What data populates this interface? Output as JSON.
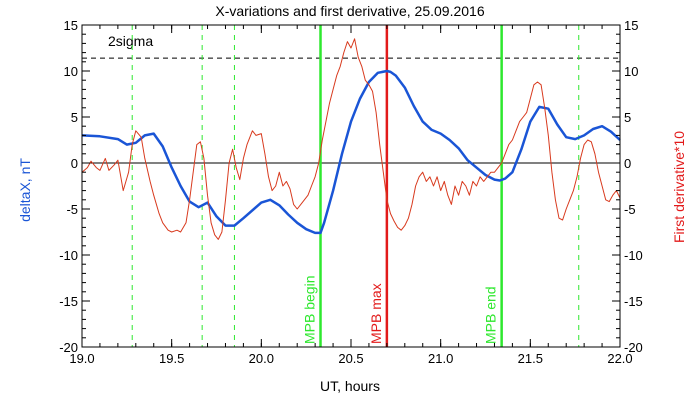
{
  "chart_data": {
    "type": "line",
    "title": "X-variations and first derivative, 25.09.2016",
    "xlabel": "UT, hours",
    "ylabel_left": "deltaX, nT",
    "ylabel_right": "First derivative*10",
    "xlim": [
      19.0,
      22.0
    ],
    "ylim": [
      -20,
      15
    ],
    "xticks": [
      "19.0",
      "19.5",
      "20.0",
      "20.5",
      "21.0",
      "21.5",
      "22.0"
    ],
    "yticks": [
      "-20",
      "-15",
      "-10",
      "-5",
      "0",
      "5",
      "10",
      "15"
    ],
    "sigma_label": "2sigma",
    "sigma_value": 11.4,
    "colors": {
      "deltaX": "#1a55d6",
      "derivative": "#d83a1e",
      "green": "#2ee82e",
      "red_marker": "#e21a1a",
      "axis": "#000000",
      "left_label": "#1a55d6",
      "right_label": "#e21a1a"
    },
    "markers": [
      {
        "label": "MPB begin",
        "x": 20.33,
        "color": "#2ee82e"
      },
      {
        "label": "MPB max",
        "x": 20.7,
        "color": "#e21a1a"
      },
      {
        "label": "MPB end",
        "x": 21.34,
        "color": "#2ee82e"
      }
    ],
    "dashed_lines_x": [
      19.28,
      19.67,
      19.85,
      21.77
    ],
    "series": [
      {
        "key": "deltaX",
        "x": [
          19.0,
          19.1,
          19.2,
          19.25,
          19.3,
          19.35,
          19.4,
          19.45,
          19.5,
          19.55,
          19.6,
          19.65,
          19.7,
          19.75,
          19.8,
          19.85,
          19.9,
          20.0,
          20.05,
          20.1,
          20.15,
          20.2,
          20.25,
          20.3,
          20.33,
          20.35,
          20.4,
          20.45,
          20.5,
          20.55,
          20.6,
          20.65,
          20.7,
          20.72,
          20.75,
          20.8,
          20.85,
          20.9,
          20.95,
          21.0,
          21.05,
          21.1,
          21.15,
          21.2,
          21.25,
          21.3,
          21.33,
          21.36,
          21.4,
          21.45,
          21.5,
          21.55,
          21.6,
          21.65,
          21.7,
          21.75,
          21.8,
          21.85,
          21.9,
          21.95,
          22.0
        ],
        "values": [
          3.0,
          2.9,
          2.6,
          2.0,
          2.2,
          3.0,
          3.2,
          1.8,
          -0.5,
          -2.5,
          -4.2,
          -4.8,
          -4.3,
          -5.8,
          -6.8,
          -6.8,
          -6.0,
          -4.3,
          -4.0,
          -4.6,
          -5.6,
          -6.5,
          -7.2,
          -7.6,
          -7.6,
          -6.5,
          -3.0,
          1.0,
          4.5,
          7.0,
          8.8,
          9.8,
          10.0,
          9.9,
          9.5,
          8.2,
          6.2,
          4.5,
          3.6,
          3.2,
          2.5,
          1.6,
          0.3,
          -0.5,
          -1.3,
          -1.8,
          -1.9,
          -1.7,
          -1.0,
          1.5,
          4.5,
          6.1,
          5.9,
          4.2,
          2.8,
          2.6,
          3.0,
          3.7,
          4.0,
          3.4,
          2.5
        ]
      },
      {
        "key": "derivative",
        "x": [
          19.0,
          19.03,
          19.05,
          19.08,
          19.1,
          19.13,
          19.15,
          19.18,
          19.2,
          19.23,
          19.26,
          19.28,
          19.3,
          19.33,
          19.35,
          19.38,
          19.4,
          19.43,
          19.45,
          19.48,
          19.5,
          19.53,
          19.55,
          19.58,
          19.6,
          19.62,
          19.64,
          19.66,
          19.68,
          19.7,
          19.72,
          19.74,
          19.76,
          19.78,
          19.8,
          19.82,
          19.84,
          19.86,
          19.88,
          19.9,
          19.92,
          19.95,
          19.97,
          20.0,
          20.02,
          20.04,
          20.06,
          20.08,
          20.1,
          20.12,
          20.14,
          20.16,
          20.18,
          20.2,
          20.22,
          20.24,
          20.26,
          20.28,
          20.3,
          20.32,
          20.34,
          20.36,
          20.38,
          20.4,
          20.42,
          20.44,
          20.46,
          20.48,
          20.5,
          20.52,
          20.54,
          20.56,
          20.58,
          20.6,
          20.62,
          20.64,
          20.66,
          20.68,
          20.7,
          20.72,
          20.74,
          20.76,
          20.78,
          20.8,
          20.82,
          20.84,
          20.86,
          20.88,
          20.9,
          20.92,
          20.94,
          20.96,
          20.98,
          21.0,
          21.02,
          21.04,
          21.06,
          21.08,
          21.1,
          21.12,
          21.14,
          21.16,
          21.18,
          21.2,
          21.22,
          21.24,
          21.26,
          21.28,
          21.3,
          21.32,
          21.34,
          21.36,
          21.38,
          21.4,
          21.42,
          21.44,
          21.46,
          21.48,
          21.5,
          21.52,
          21.54,
          21.56,
          21.58,
          21.6,
          21.62,
          21.64,
          21.66,
          21.68,
          21.7,
          21.72,
          21.74,
          21.76,
          21.78,
          21.8,
          21.82,
          21.84,
          21.86,
          21.88,
          21.9,
          21.92,
          21.94,
          21.96,
          21.98,
          22.0
        ],
        "values": [
          -1.0,
          -0.5,
          0.2,
          -0.5,
          -0.8,
          0.5,
          -0.8,
          -0.2,
          0.3,
          -3.0,
          -1.0,
          2.0,
          3.5,
          2.8,
          0.5,
          -2.0,
          -3.5,
          -5.5,
          -6.5,
          -7.3,
          -7.5,
          -7.3,
          -7.5,
          -6.5,
          -4.0,
          -1.0,
          2.0,
          2.3,
          0.5,
          -3.5,
          -6.5,
          -7.8,
          -8.3,
          -7.5,
          -4.0,
          0.0,
          1.5,
          -0.5,
          -1.8,
          0.5,
          2.0,
          3.5,
          3.0,
          3.2,
          1.0,
          -1.5,
          -3.0,
          -2.5,
          -1.0,
          -2.5,
          -2.0,
          -2.8,
          -4.5,
          -5.0,
          -4.5,
          -4.0,
          -3.5,
          -2.5,
          -1.5,
          0.0,
          2.5,
          4.5,
          6.5,
          8.0,
          9.5,
          10.5,
          12.0,
          13.2,
          12.5,
          13.5,
          11.5,
          10.5,
          9.0,
          8.5,
          7.8,
          5.5,
          2.0,
          -1.0,
          -4.0,
          -5.5,
          -6.3,
          -7.0,
          -7.3,
          -6.8,
          -6.0,
          -4.5,
          -2.5,
          -1.5,
          -1.0,
          -2.0,
          -1.5,
          -2.5,
          -1.5,
          -3.0,
          -2.0,
          -3.5,
          -4.5,
          -2.5,
          -3.5,
          -2.0,
          -2.5,
          -3.5,
          -2.0,
          -2.5,
          -1.5,
          -2.0,
          -1.5,
          -1.0,
          -1.0,
          -0.5,
          0.0,
          1.0,
          2.0,
          2.5,
          3.5,
          4.5,
          5.0,
          5.5,
          7.0,
          8.5,
          8.8,
          8.5,
          6.0,
          3.0,
          -1.0,
          -4.0,
          -6.0,
          -6.2,
          -5.0,
          -4.0,
          -3.0,
          -1.5,
          0.5,
          2.0,
          2.5,
          2.3,
          1.0,
          -1.0,
          -2.5,
          -4.0,
          -4.2,
          -3.5,
          -3.0,
          -3.8
        ]
      }
    ]
  }
}
